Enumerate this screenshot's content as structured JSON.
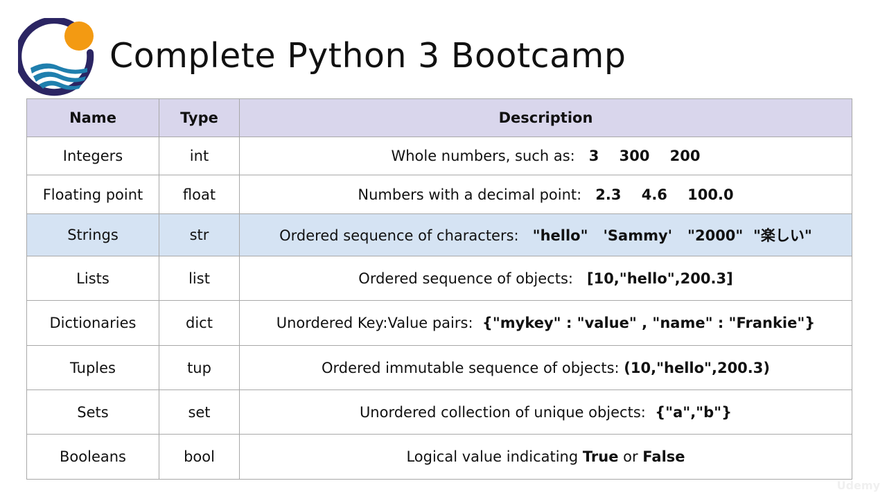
{
  "header": {
    "title": "Complete Python 3 Bootcamp"
  },
  "colors": {
    "logo_ring": "#2b2563",
    "logo_sun": "#f39a12",
    "logo_waves": "#1f7fae",
    "table_header_bg": "#d9d6ec",
    "highlight_row_bg": "#d5e3f3"
  },
  "table": {
    "columns": [
      "Name",
      "Type",
      "Description"
    ],
    "highlighted_row": 2,
    "rows": [
      {
        "name": "Integers",
        "type": "int",
        "desc": [
          {
            "t": "Whole numbers, such as:   "
          },
          {
            "t": "3    300    200",
            "b": true
          }
        ]
      },
      {
        "name": "Floating point",
        "type": "float",
        "desc": [
          {
            "t": "Numbers with a decimal point:   "
          },
          {
            "t": "2.3    4.6    100.0",
            "b": true
          }
        ]
      },
      {
        "name": "Strings",
        "type": "str",
        "desc": [
          {
            "t": "Ordered sequence of characters:   "
          },
          {
            "t": "\"hello\"   'Sammy'   \"2000\"  \"楽しい\"",
            "b": true
          }
        ]
      },
      {
        "name": "Lists",
        "type": "list",
        "desc": [
          {
            "t": "Ordered sequence of objects:   "
          },
          {
            "t": "[10,\"hello\",200.3]",
            "b": true
          }
        ]
      },
      {
        "name": "Dictionaries",
        "type": "dict",
        "desc": [
          {
            "t": "Unordered Key:Value pairs:  "
          },
          {
            "t": "{\"mykey\" : \"value\" , \"name\" : \"Frankie\"}",
            "b": true
          }
        ]
      },
      {
        "name": "Tuples",
        "type": "tup",
        "desc": [
          {
            "t": "Ordered immutable sequence of objects: "
          },
          {
            "t": "(10,\"hello\",200.3)",
            "b": true
          }
        ]
      },
      {
        "name": "Sets",
        "type": "set",
        "desc": [
          {
            "t": "Unordered collection of unique objects:  "
          },
          {
            "t": "{\"a\",\"b\"}",
            "b": true
          }
        ]
      },
      {
        "name": "Booleans",
        "type": "bool",
        "desc": [
          {
            "t": "Logical value indicating "
          },
          {
            "t": "True",
            "b": true
          },
          {
            "t": " or "
          },
          {
            "t": "False",
            "b": true
          }
        ]
      }
    ]
  },
  "watermark": "Udemy"
}
